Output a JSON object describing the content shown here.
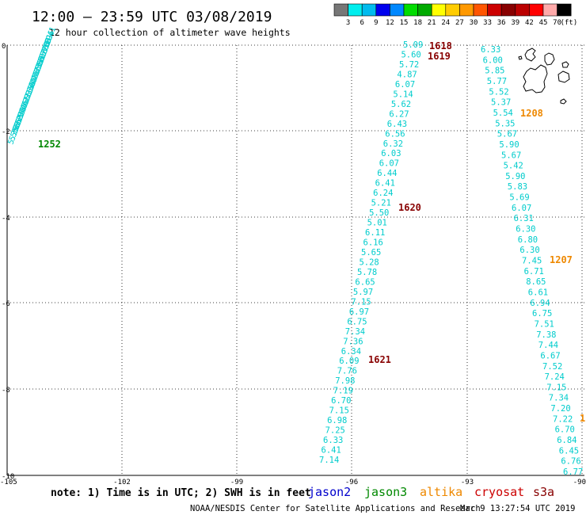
{
  "header": {
    "title": "12:00 – 23:59 UTC 03/08/2019",
    "subtitle": "12 hour collection of altimeter wave heights"
  },
  "colorbar": {
    "colors": [
      "#777777",
      "#00eeee",
      "#00bbee",
      "#0000ee",
      "#0088ff",
      "#00dd00",
      "#00aa00",
      "#ffff00",
      "#ffcc00",
      "#ff9900",
      "#ff5500",
      "#cc0000",
      "#880000",
      "#bb0000",
      "#ff0000",
      "#ffaaaa",
      "#000000"
    ],
    "labels": [
      "3",
      "6",
      "9",
      "12",
      "15",
      "18",
      "21",
      "24",
      "27",
      "30",
      "33",
      "36",
      "39",
      "42",
      "45",
      "70",
      "(ft)"
    ]
  },
  "axes": {
    "y_ticks": [
      "0",
      "-2",
      "-4",
      "-6",
      "-8",
      "-10"
    ],
    "x_ticks": [
      "-105",
      "-102",
      "-99",
      "-96",
      "-93",
      "-90"
    ]
  },
  "track_colors": {
    "cyan": "#00cccc",
    "jason3": "#008800",
    "altika": "#ee8800",
    "cryosat": "#880000",
    "text": "#000000"
  },
  "tracks": {
    "west": {
      "values": [
        "5.41",
        "5.96",
        "5.81",
        "5.68",
        "5.70",
        "5.70",
        "5.68",
        "5.61",
        "5.58",
        "5.56",
        "5.53",
        "5.47",
        "5.45",
        "5.42",
        "5.40",
        "5.38",
        "5.36",
        "5.31",
        "5.37",
        "5.42",
        "5.45",
        "5.40",
        "5.58",
        "6.22",
        "5.59",
        "5.55",
        "5.56",
        "5.36"
      ],
      "time_label": "1252"
    },
    "central": {
      "values": [
        "5.09",
        "5.60",
        "5.72",
        "4.87",
        "6.07",
        "5.14",
        "5.62",
        "6.27",
        "6.43",
        "6.56",
        "6.32",
        "6.03",
        "6.07",
        "6.44",
        "6.41",
        "6.24",
        "5.21",
        "5.50",
        "5.01",
        "6.11",
        "6.16",
        "5.65",
        "5.28",
        "5.78",
        "6.65",
        "5.97",
        "7.15",
        "6.97",
        "6.75",
        "7.34",
        "7.36",
        "6.34",
        "6.09",
        "7.76",
        "7.98",
        "7.19",
        "6.70",
        "7.15",
        "6.98",
        "7.25",
        "6.33",
        "6.41",
        "7.14"
      ],
      "time_labels": [
        "1618",
        "1619",
        "1620",
        "1621"
      ]
    },
    "east": {
      "values": [
        "6.33",
        "6.00",
        "5.85",
        "5.77",
        "5.52",
        "5.37",
        "5.54",
        "5.35",
        "5.67",
        "5.90",
        "5.67",
        "5.42",
        "5.90",
        "5.83",
        "5.69",
        "6.07",
        "6.31",
        "6.30",
        "6.80",
        "6.30",
        "7.45",
        "6.71",
        "8.65",
        "6.61",
        "6.94",
        "6.75",
        "7.51",
        "7.38",
        "7.44",
        "6.67",
        "7.52",
        "7.24",
        "7.15",
        "7.34",
        "7.20",
        "7.22",
        "6.70",
        "6.84",
        "6.45",
        "6.76",
        "6.77"
      ],
      "time_labels": [
        "1208",
        "1207"
      ],
      "edge_label": "1"
    }
  },
  "legend": {
    "note": "note: 1) Time is in UTC; 2) SWH is in feet",
    "satellites": [
      {
        "name": "jason2",
        "color": "#0000cc"
      },
      {
        "name": "jason3",
        "color": "#008800"
      },
      {
        "name": "altika",
        "color": "#ee8800"
      },
      {
        "name": "cryosat",
        "color": "#cc0000"
      },
      {
        "name": "s3a",
        "color": "#880000"
      }
    ]
  },
  "footer": {
    "credit": "NOAA/NESDIS Center for Satellite Applications and Research",
    "timestamp": "Mar  9 13:27:54 UTC 2019"
  }
}
